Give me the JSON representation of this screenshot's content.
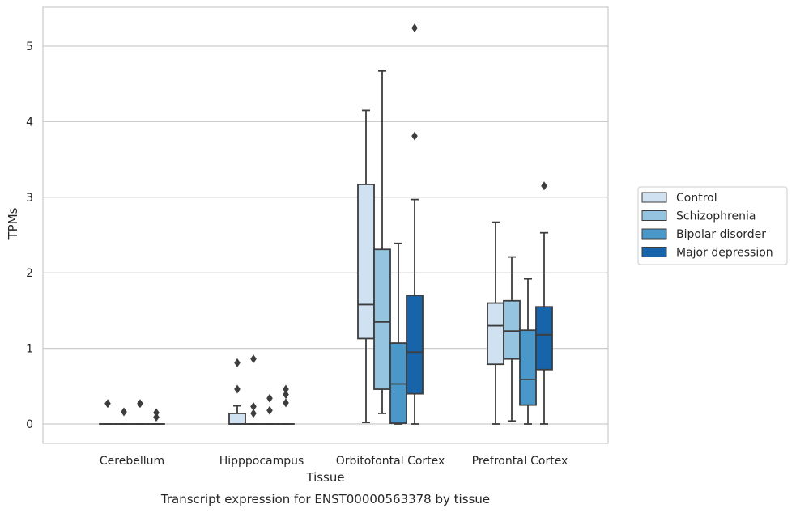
{
  "chart_data": {
    "type": "boxplot",
    "title": "",
    "caption": "Transcript expression for ENST00000563378 by tissue",
    "xlabel": "Tissue",
    "ylabel": "TPMs",
    "ylim": [
      -0.25,
      5.5
    ],
    "yticks": [
      0,
      1,
      2,
      3,
      4,
      5
    ],
    "grid": "horizontal",
    "legend_position": "right",
    "categories": [
      "Cerebellum",
      "Hipppocampus",
      "Orbitofontal Cortex",
      "Prefrontal Cortex"
    ],
    "series": [
      {
        "name": "Control",
        "color": "#d0e1f2",
        "boxes": [
          {
            "whislo": 0,
            "q1": 0,
            "med": 0,
            "q3": 0,
            "whishi": 0,
            "fliers": [
              0.27
            ]
          },
          {
            "whislo": 0,
            "q1": 0,
            "med": 0,
            "q3": 0.14,
            "whishi": 0.24,
            "fliers": [
              0.46,
              0.81
            ]
          },
          {
            "whislo": 0.02,
            "q1": 1.13,
            "med": 1.58,
            "q3": 3.17,
            "whishi": 4.15,
            "fliers": []
          },
          {
            "whislo": 0,
            "q1": 0.79,
            "med": 1.3,
            "q3": 1.6,
            "whishi": 2.67,
            "fliers": []
          }
        ]
      },
      {
        "name": "Schizophrenia",
        "color": "#94c4df",
        "boxes": [
          {
            "whislo": 0,
            "q1": 0,
            "med": 0,
            "q3": 0,
            "whishi": 0,
            "fliers": [
              0.16
            ]
          },
          {
            "whislo": 0,
            "q1": 0,
            "med": 0,
            "q3": 0,
            "whishi": 0,
            "fliers": [
              0.14,
              0.23,
              0.86
            ]
          },
          {
            "whislo": 0.14,
            "q1": 0.46,
            "med": 1.35,
            "q3": 2.31,
            "whishi": 4.67,
            "fliers": []
          },
          {
            "whislo": 0.04,
            "q1": 0.86,
            "med": 1.23,
            "q3": 1.63,
            "whishi": 2.21,
            "fliers": []
          }
        ]
      },
      {
        "name": "Bipolar disorder",
        "color": "#4a98c9",
        "boxes": [
          {
            "whislo": 0,
            "q1": 0,
            "med": 0,
            "q3": 0,
            "whishi": 0,
            "fliers": [
              0.27
            ]
          },
          {
            "whislo": 0,
            "q1": 0,
            "med": 0,
            "q3": 0,
            "whishi": 0,
            "fliers": [
              0.18,
              0.34
            ]
          },
          {
            "whislo": 0,
            "q1": 0.01,
            "med": 0.53,
            "q3": 1.07,
            "whishi": 2.39,
            "fliers": []
          },
          {
            "whislo": 0,
            "q1": 0.25,
            "med": 0.59,
            "q3": 1.24,
            "whishi": 1.92,
            "fliers": []
          }
        ]
      },
      {
        "name": "Major depression",
        "color": "#1764ab",
        "boxes": [
          {
            "whislo": 0,
            "q1": 0,
            "med": 0,
            "q3": 0,
            "whishi": 0,
            "fliers": [
              0.09,
              0.15
            ]
          },
          {
            "whislo": 0,
            "q1": 0,
            "med": 0,
            "q3": 0,
            "whishi": 0,
            "fliers": [
              0.28,
              0.39,
              0.46
            ]
          },
          {
            "whislo": 0,
            "q1": 0.4,
            "med": 0.95,
            "q3": 1.7,
            "whishi": 2.97,
            "fliers": [
              3.81,
              5.24
            ]
          },
          {
            "whislo": 0,
            "q1": 0.72,
            "med": 1.18,
            "q3": 1.55,
            "whishi": 2.53,
            "fliers": [
              3.15
            ]
          }
        ]
      }
    ]
  }
}
